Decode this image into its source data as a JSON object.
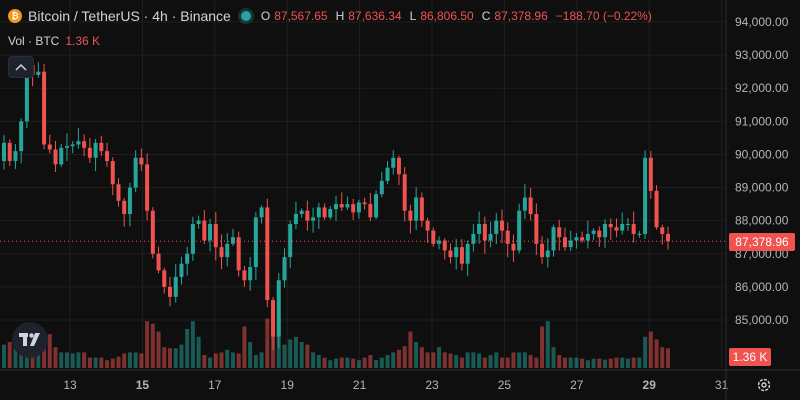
{
  "header": {
    "symbol_title": "Bitcoin / TetherUS · 4h · Binance",
    "ohlc": [
      {
        "key": "O",
        "value": "87,567.65"
      },
      {
        "key": "H",
        "value": "87,636.34"
      },
      {
        "key": "L",
        "value": "86,806.50"
      },
      {
        "key": "C",
        "value": "87,378.96"
      }
    ],
    "change": "−188.70 (−0.22%)"
  },
  "volume": {
    "label": "Vol · BTC",
    "value": "1.36 K"
  },
  "colors": {
    "up": "#26a69a",
    "down": "#ef5350",
    "background": "#0f0f0f",
    "grid": "#1f1f1f",
    "text": "#d1d4dc"
  },
  "icons": {
    "collapse": "chevron-up-icon",
    "logo": "tradingview-logo-icon",
    "settings": "gear-icon",
    "symbol": "bitcoin-icon"
  },
  "chart_data": {
    "type": "candlestick",
    "y_axis_ticks": [
      "94,000.00",
      "93,000.00",
      "92,000.00",
      "91,000.00",
      "90,000.00",
      "89,000.00",
      "88,000.00",
      "87,000.00",
      "86,000.00",
      "85,000.00"
    ],
    "y_axis_range": [
      84000,
      94300
    ],
    "x_axis_ticks": [
      {
        "label": "13",
        "day": 13,
        "bold": false
      },
      {
        "label": "15",
        "day": 15,
        "bold": true
      },
      {
        "label": "17",
        "day": 17,
        "bold": false
      },
      {
        "label": "19",
        "day": 19,
        "bold": false
      },
      {
        "label": "21",
        "day": 21,
        "bold": false
      },
      {
        "label": "23",
        "day": 23,
        "bold": false
      },
      {
        "label": "25",
        "day": 25,
        "bold": false
      },
      {
        "label": "27",
        "day": 27,
        "bold": false
      },
      {
        "label": "29",
        "day": 29,
        "bold": true
      },
      {
        "label": "31",
        "day": 31,
        "bold": false
      }
    ],
    "last_price": 87378.96,
    "last_price_label": "87,378.96",
    "volume_label": "1.36 K",
    "closes": [
      90350,
      89800,
      90100,
      91000,
      92700,
      92400,
      92500,
      90300,
      90150,
      89700,
      90200,
      90250,
      90300,
      90400,
      90200,
      89900,
      90350,
      90100,
      89800,
      89100,
      88600,
      88200,
      89000,
      89900,
      89700,
      88300,
      87000,
      86500,
      86000,
      85700,
      86300,
      86700,
      87000,
      87900,
      88000,
      87400,
      87900,
      87200,
      86900,
      87300,
      87500,
      86500,
      86200,
      86600,
      88100,
      88400,
      85600,
      84500,
      86200,
      86900,
      87900,
      88200,
      88300,
      88000,
      88100,
      88400,
      88100,
      88350,
      88500,
      88400,
      88500,
      88250,
      88550,
      88500,
      88100,
      88800,
      89200,
      89600,
      89900,
      89400,
      88300,
      88000,
      88700,
      88000,
      87700,
      87300,
      87400,
      87100,
      86900,
      87200,
      86700,
      87300,
      87600,
      87900,
      87400,
      87600,
      88000,
      87700,
      87300,
      87100,
      88300,
      88700,
      88200,
      87300,
      86900,
      87100,
      87800,
      87500,
      87200,
      87400,
      87500,
      87400,
      87600,
      87700,
      87500,
      87900,
      87800,
      87700,
      87900,
      87900,
      87600,
      87600,
      89900,
      88900,
      87800,
      87600,
      87379
    ],
    "volumes": [
      0.45,
      0.5,
      0.38,
      0.75,
      0.8,
      0.72,
      0.7,
      0.68,
      0.65,
      0.4,
      0.3,
      0.3,
      0.28,
      0.3,
      0.3,
      0.2,
      0.2,
      0.2,
      0.15,
      0.18,
      0.22,
      0.28,
      0.3,
      0.3,
      0.28,
      0.9,
      0.85,
      0.7,
      0.4,
      0.38,
      0.38,
      0.45,
      0.75,
      0.9,
      0.6,
      0.25,
      0.2,
      0.28,
      0.3,
      0.35,
      0.3,
      0.28,
      0.8,
      0.5,
      0.25,
      0.3,
      0.95,
      0.85,
      0.9,
      0.45,
      0.55,
      0.6,
      0.5,
      0.45,
      0.3,
      0.25,
      0.2,
      0.15,
      0.18,
      0.2,
      0.2,
      0.18,
      0.15,
      0.2,
      0.25,
      0.15,
      0.2,
      0.25,
      0.3,
      0.35,
      0.42,
      0.7,
      0.5,
      0.4,
      0.3,
      0.3,
      0.4,
      0.3,
      0.28,
      0.25,
      0.2,
      0.3,
      0.3,
      0.28,
      0.2,
      0.25,
      0.3,
      0.2,
      0.2,
      0.3,
      0.3,
      0.3,
      0.25,
      0.2,
      0.8,
      0.9,
      0.4,
      0.25,
      0.2,
      0.2,
      0.2,
      0.18,
      0.15,
      0.18,
      0.18,
      0.16,
      0.18,
      0.2,
      0.2,
      0.18,
      0.2,
      0.2,
      0.6,
      0.7,
      0.55,
      0.4,
      0.38
    ]
  }
}
